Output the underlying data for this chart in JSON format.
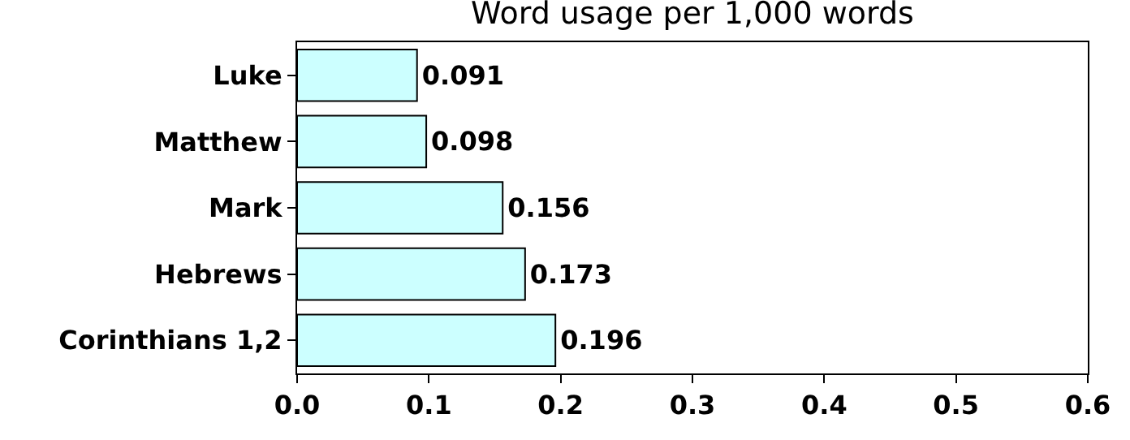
{
  "chart_data": {
    "type": "bar",
    "orientation": "horizontal",
    "title": "Word usage per 1,000 words",
    "categories": [
      "Luke",
      "Matthew",
      "Mark",
      "Hebrews",
      "Corinthians 1,2"
    ],
    "values": [
      0.091,
      0.098,
      0.156,
      0.173,
      0.196
    ],
    "color": "#ccffff",
    "data_labels": true,
    "xlim": [
      0,
      0.6
    ],
    "xticks": [
      {
        "value": 0,
        "label": "0.0"
      },
      0.1,
      0.2,
      0.3,
      0.4,
      0.5,
      0.6
    ]
  }
}
